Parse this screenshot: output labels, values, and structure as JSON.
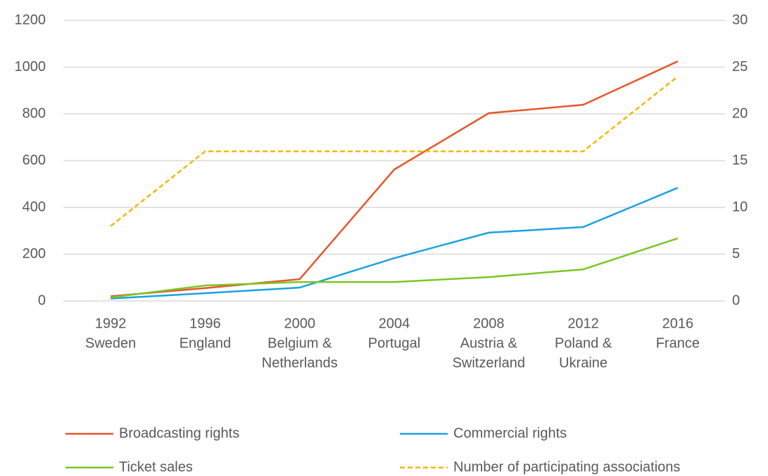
{
  "chart_data": {
    "type": "line",
    "categories": [
      [
        "1992",
        "Sweden"
      ],
      [
        "1996",
        "England"
      ],
      [
        "2000",
        "Belgium &",
        "Netherlands"
      ],
      [
        "2004",
        "Portugal"
      ],
      [
        "2008",
        "Austria &",
        "Switzerland"
      ],
      [
        "2012",
        "Poland &",
        "Ukraine"
      ],
      [
        "2016",
        "France"
      ]
    ],
    "series": [
      {
        "name": "Broadcasting rights",
        "color": "#e8562a",
        "values": [
          20,
          55,
          93,
          562,
          803,
          839,
          1025
        ]
      },
      {
        "name": "Commercial rights",
        "color": "#1ba1e2",
        "values": [
          10,
          33,
          57,
          183,
          292,
          316,
          484
        ]
      },
      {
        "name": "Ticket sales",
        "color": "#7dc623",
        "values": [
          15,
          66,
          81,
          81,
          102,
          135,
          268
        ]
      },
      {
        "name": "Number of participating associations",
        "color": "#f5b800",
        "dashed": true,
        "axis": "y2",
        "values": [
          8,
          16,
          16,
          16,
          16,
          16,
          24
        ]
      }
    ],
    "ylim": [
      0,
      1200
    ],
    "yticks": [
      0,
      200,
      400,
      600,
      800,
      1000,
      1200
    ],
    "y2lim": [
      0,
      30
    ],
    "y2ticks": [
      0,
      5,
      10,
      15,
      20,
      25,
      30
    ],
    "grid": true,
    "legend": "bottom"
  }
}
